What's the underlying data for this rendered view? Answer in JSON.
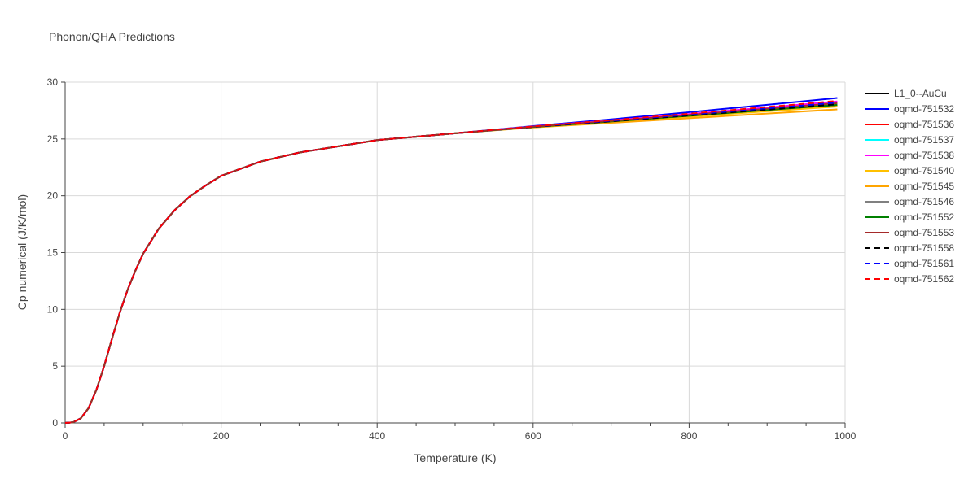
{
  "chart_data": {
    "type": "line",
    "title": "Phonon/QHA Predictions",
    "xlabel": "Temperature (K)",
    "ylabel": "Cp numerical (J/K/mol)",
    "xlim": [
      0,
      1000
    ],
    "ylim": [
      0,
      30
    ],
    "xticks": [
      0,
      200,
      400,
      600,
      800,
      1000
    ],
    "yticks": [
      0,
      5,
      10,
      15,
      20,
      25,
      30
    ],
    "grid": true,
    "legend_position": "right",
    "x": [
      0,
      10,
      20,
      30,
      40,
      50,
      60,
      70,
      80,
      90,
      100,
      120,
      140,
      160,
      180,
      200,
      250,
      300,
      400,
      500,
      600,
      700,
      800,
      900,
      990
    ],
    "base_values": [
      0,
      0.05,
      0.4,
      1.3,
      2.9,
      5.0,
      7.4,
      9.7,
      11.7,
      13.4,
      14.9,
      17.1,
      18.7,
      19.95,
      20.9,
      21.75,
      23.0,
      23.8,
      24.9,
      25.5,
      26.0,
      26.4,
      26.8,
      27.2,
      27.55
    ],
    "series": [
      {
        "name": "L1_0--AuCu",
        "color": "#000000",
        "dash": "solid",
        "end_value": 27.95
      },
      {
        "name": "oqmd-751532",
        "color": "#0000ff",
        "dash": "solid",
        "end_value": 28.6
      },
      {
        "name": "oqmd-751536",
        "color": "#ff0000",
        "dash": "solid",
        "end_value": 28.25
      },
      {
        "name": "oqmd-751537",
        "color": "#00ffff",
        "dash": "solid",
        "end_value": 28.2
      },
      {
        "name": "oqmd-751538",
        "color": "#ff00ff",
        "dash": "solid",
        "end_value": 28.3
      },
      {
        "name": "oqmd-751540",
        "color": "#ffc000",
        "dash": "solid",
        "end_value": 27.85
      },
      {
        "name": "oqmd-751545",
        "color": "#ffa500",
        "dash": "solid",
        "end_value": 27.6
      },
      {
        "name": "oqmd-751546",
        "color": "#808080",
        "dash": "solid",
        "end_value": 28.1
      },
      {
        "name": "oqmd-751552",
        "color": "#008000",
        "dash": "solid",
        "end_value": 28.0
      },
      {
        "name": "oqmd-751553",
        "color": "#a52a2a",
        "dash": "solid",
        "end_value": 28.15
      },
      {
        "name": "oqmd-751558",
        "color": "#000000",
        "dash": "dash",
        "end_value": 28.05
      },
      {
        "name": "oqmd-751561",
        "color": "#0000ff",
        "dash": "dash",
        "end_value": 28.2
      },
      {
        "name": "oqmd-751562",
        "color": "#ff0000",
        "dash": "dash",
        "end_value": 28.35
      }
    ]
  }
}
